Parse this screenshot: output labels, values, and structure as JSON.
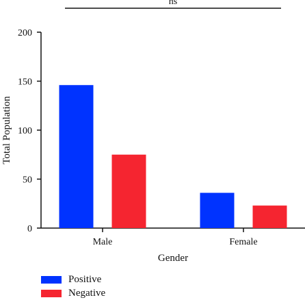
{
  "chart_data": {
    "type": "bar",
    "categories": [
      "Male",
      "Female"
    ],
    "series": [
      {
        "name": "Positive",
        "values": [
          146,
          36
        ],
        "color": "#0033ff"
      },
      {
        "name": "Negative",
        "values": [
          75,
          23
        ],
        "color": "#f52530"
      }
    ],
    "xlabel": "Gender",
    "ylabel": "Total Population",
    "ylim": [
      0,
      200
    ],
    "yticks": [
      0,
      50,
      100,
      150,
      200
    ],
    "significance": "ns",
    "grid": false,
    "legend_position": "bottom-left"
  }
}
